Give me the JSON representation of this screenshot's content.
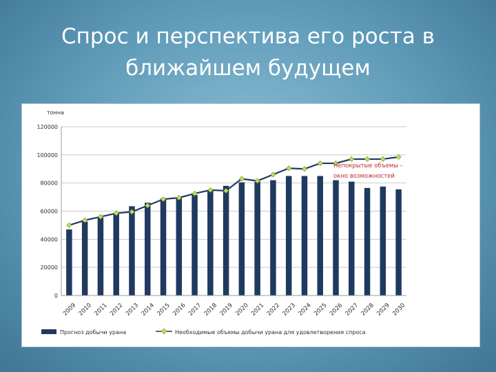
{
  "slide": {
    "title_line1": "Спрос и перспектива его роста в",
    "title_line2": "ближайшем будущем"
  },
  "chart_data": {
    "type": "bar",
    "ylabel": "тонна",
    "ylim": [
      0,
      120000
    ],
    "yticks": [
      "0",
      "20000",
      "40000",
      "60000",
      "80000",
      "100000",
      "120000"
    ],
    "grid": true,
    "categories": [
      "2009",
      "2010",
      "2011",
      "2012",
      "2013",
      "2014",
      "2015",
      "2016",
      "2017",
      "2018",
      "2019",
      "2020",
      "2021",
      "2022",
      "2023",
      "2024",
      "2025",
      "2026",
      "2027",
      "2028",
      "2029",
      "2030"
    ],
    "series": [
      {
        "name": "Прогноз добычи урана",
        "kind": "bar",
        "color": "#1f3a5f",
        "values": [
          47000,
          52500,
          55500,
          58500,
          63500,
          66000,
          69000,
          69500,
          71500,
          74500,
          78000,
          80500,
          81000,
          82000,
          85000,
          85000,
          85000,
          82000,
          81000,
          76500,
          77500,
          75500
        ]
      },
      {
        "name": "Необходимые объемы добычи урана для удовлетворения спроса",
        "kind": "line",
        "color": "#1f3a5f",
        "marker_color": "#c5dc5a",
        "values": [
          50000,
          53500,
          56000,
          58500,
          59500,
          64000,
          68500,
          69500,
          72500,
          75000,
          74500,
          83000,
          81500,
          86000,
          90500,
          90000,
          94000,
          94000,
          97000,
          97000,
          97000,
          98500
        ]
      }
    ],
    "annotation": {
      "line1": "Непокрытые объемы –",
      "line2": "окно возможностей",
      "color": "#c0282d"
    },
    "legend_position": "bottom"
  }
}
